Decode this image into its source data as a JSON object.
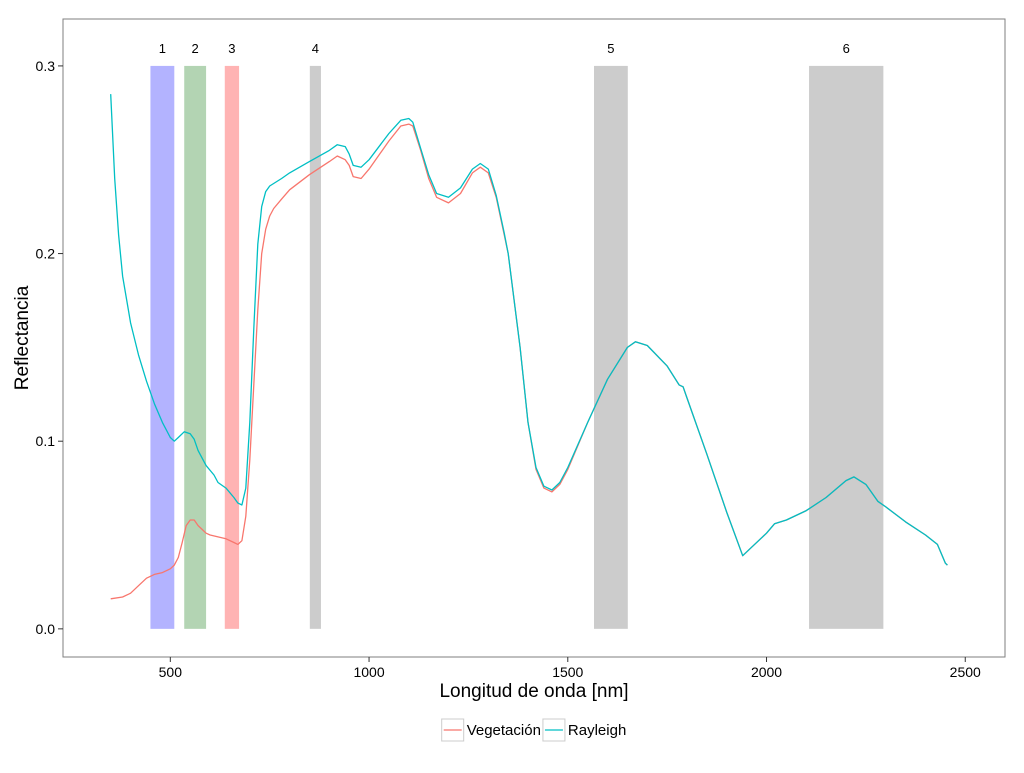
{
  "chart_data": {
    "type": "line",
    "title": "",
    "xlabel": "Longitud de onda [nm]",
    "ylabel": "Reflectancia",
    "xlim": [
      230,
      2600
    ],
    "ylim": [
      -0.015,
      0.325
    ],
    "x_ticks": [
      500,
      1000,
      1500,
      2000,
      2500
    ],
    "x_tick_labels": [
      "500",
      "1000",
      "1500",
      "2000",
      "2500"
    ],
    "y_ticks": [
      0.0,
      0.1,
      0.2,
      0.3
    ],
    "y_tick_labels": [
      "0.0",
      "0.1",
      "0.2",
      "0.3"
    ],
    "grid": false,
    "legend_position": "bottom",
    "bands": [
      {
        "label": "1",
        "x_start": 450,
        "x_end": 510,
        "y_max": 0.3,
        "color": "#b3b3ff"
      },
      {
        "label": "2",
        "x_start": 535,
        "x_end": 590,
        "y_max": 0.3,
        "color": "#b3d4b3"
      },
      {
        "label": "3",
        "x_start": 637,
        "x_end": 673,
        "y_max": 0.3,
        "color": "#ffb3b3"
      },
      {
        "label": "4",
        "x_start": 851,
        "x_end": 879,
        "y_max": 0.3,
        "color": "#cccccc"
      },
      {
        "label": "5",
        "x_start": 1566,
        "x_end": 1651,
        "y_max": 0.3,
        "color": "#cccccc"
      },
      {
        "label": "6",
        "x_start": 2107,
        "x_end": 2294,
        "y_max": 0.3,
        "color": "#cccccc"
      }
    ],
    "series": [
      {
        "name": "Vegetación",
        "color": "#F8766D",
        "points": [
          [
            350,
            0.016
          ],
          [
            380,
            0.017
          ],
          [
            400,
            0.019
          ],
          [
            420,
            0.023
          ],
          [
            440,
            0.027
          ],
          [
            460,
            0.029
          ],
          [
            480,
            0.03
          ],
          [
            500,
            0.032
          ],
          [
            510,
            0.034
          ],
          [
            520,
            0.038
          ],
          [
            530,
            0.046
          ],
          [
            540,
            0.055
          ],
          [
            550,
            0.058
          ],
          [
            560,
            0.058
          ],
          [
            570,
            0.055
          ],
          [
            580,
            0.053
          ],
          [
            590,
            0.051
          ],
          [
            600,
            0.05
          ],
          [
            620,
            0.049
          ],
          [
            640,
            0.048
          ],
          [
            660,
            0.046
          ],
          [
            670,
            0.045
          ],
          [
            680,
            0.047
          ],
          [
            690,
            0.06
          ],
          [
            700,
            0.09
          ],
          [
            710,
            0.13
          ],
          [
            720,
            0.17
          ],
          [
            730,
            0.2
          ],
          [
            740,
            0.213
          ],
          [
            750,
            0.22
          ],
          [
            760,
            0.224
          ],
          [
            780,
            0.229
          ],
          [
            800,
            0.234
          ],
          [
            850,
            0.242
          ],
          [
            900,
            0.249
          ],
          [
            920,
            0.252
          ],
          [
            940,
            0.25
          ],
          [
            950,
            0.247
          ],
          [
            960,
            0.241
          ],
          [
            980,
            0.24
          ],
          [
            1000,
            0.245
          ],
          [
            1050,
            0.26
          ],
          [
            1080,
            0.268
          ],
          [
            1100,
            0.269
          ],
          [
            1110,
            0.268
          ],
          [
            1130,
            0.255
          ],
          [
            1150,
            0.24
          ],
          [
            1170,
            0.23
          ],
          [
            1200,
            0.227
          ],
          [
            1230,
            0.232
          ],
          [
            1260,
            0.243
          ],
          [
            1280,
            0.246
          ],
          [
            1300,
            0.243
          ],
          [
            1320,
            0.23
          ],
          [
            1340,
            0.21
          ],
          [
            1350,
            0.2
          ],
          [
            1380,
            0.15
          ],
          [
            1400,
            0.11
          ],
          [
            1420,
            0.085
          ],
          [
            1440,
            0.075
          ],
          [
            1460,
            0.073
          ],
          [
            1480,
            0.077
          ],
          [
            1500,
            0.085
          ],
          [
            1550,
            0.11
          ],
          [
            1600,
            0.133
          ],
          [
            1650,
            0.15
          ],
          [
            1670,
            0.153
          ],
          [
            1700,
            0.151
          ],
          [
            1750,
            0.14
          ],
          [
            1780,
            0.13
          ],
          [
            1790,
            0.129
          ],
          [
            1800,
            0.123
          ],
          [
            1850,
            0.093
          ],
          [
            1900,
            0.062
          ],
          [
            1940,
            0.039
          ],
          [
            1960,
            0.043
          ],
          [
            2000,
            0.051
          ],
          [
            2020,
            0.056
          ],
          [
            2050,
            0.058
          ],
          [
            2100,
            0.063
          ],
          [
            2150,
            0.07
          ],
          [
            2200,
            0.079
          ],
          [
            2220,
            0.081
          ],
          [
            2250,
            0.077
          ],
          [
            2280,
            0.068
          ],
          [
            2300,
            0.065
          ],
          [
            2350,
            0.057
          ],
          [
            2400,
            0.05
          ],
          [
            2430,
            0.045
          ],
          [
            2450,
            0.035
          ],
          [
            2455,
            0.034
          ]
        ]
      },
      {
        "name": "Rayleigh",
        "color": "#00BFC4",
        "points": [
          [
            350,
            0.285
          ],
          [
            360,
            0.24
          ],
          [
            370,
            0.21
          ],
          [
            380,
            0.188
          ],
          [
            400,
            0.163
          ],
          [
            420,
            0.146
          ],
          [
            440,
            0.132
          ],
          [
            460,
            0.12
          ],
          [
            480,
            0.11
          ],
          [
            500,
            0.102
          ],
          [
            510,
            0.1
          ],
          [
            520,
            0.102
          ],
          [
            535,
            0.105
          ],
          [
            550,
            0.104
          ],
          [
            560,
            0.101
          ],
          [
            570,
            0.095
          ],
          [
            590,
            0.087
          ],
          [
            610,
            0.082
          ],
          [
            620,
            0.078
          ],
          [
            640,
            0.075
          ],
          [
            660,
            0.07
          ],
          [
            670,
            0.067
          ],
          [
            680,
            0.066
          ],
          [
            690,
            0.075
          ],
          [
            700,
            0.11
          ],
          [
            710,
            0.16
          ],
          [
            720,
            0.205
          ],
          [
            730,
            0.225
          ],
          [
            740,
            0.233
          ],
          [
            750,
            0.236
          ],
          [
            780,
            0.24
          ],
          [
            800,
            0.243
          ],
          [
            850,
            0.249
          ],
          [
            900,
            0.255
          ],
          [
            920,
            0.258
          ],
          [
            940,
            0.257
          ],
          [
            950,
            0.253
          ],
          [
            960,
            0.247
          ],
          [
            980,
            0.246
          ],
          [
            1000,
            0.25
          ],
          [
            1050,
            0.264
          ],
          [
            1080,
            0.271
          ],
          [
            1100,
            0.272
          ],
          [
            1110,
            0.27
          ],
          [
            1130,
            0.256
          ],
          [
            1150,
            0.242
          ],
          [
            1170,
            0.232
          ],
          [
            1200,
            0.23
          ],
          [
            1230,
            0.235
          ],
          [
            1260,
            0.245
          ],
          [
            1280,
            0.248
          ],
          [
            1300,
            0.245
          ],
          [
            1320,
            0.231
          ],
          [
            1340,
            0.211
          ],
          [
            1350,
            0.2
          ],
          [
            1380,
            0.15
          ],
          [
            1400,
            0.11
          ],
          [
            1420,
            0.086
          ],
          [
            1440,
            0.076
          ],
          [
            1460,
            0.074
          ],
          [
            1480,
            0.078
          ],
          [
            1500,
            0.086
          ],
          [
            1550,
            0.11
          ],
          [
            1600,
            0.133
          ],
          [
            1650,
            0.15
          ],
          [
            1670,
            0.153
          ],
          [
            1700,
            0.151
          ],
          [
            1750,
            0.14
          ],
          [
            1780,
            0.13
          ],
          [
            1790,
            0.129
          ],
          [
            1800,
            0.123
          ],
          [
            1850,
            0.093
          ],
          [
            1900,
            0.062
          ],
          [
            1940,
            0.039
          ],
          [
            1960,
            0.043
          ],
          [
            2000,
            0.051
          ],
          [
            2020,
            0.056
          ],
          [
            2050,
            0.058
          ],
          [
            2100,
            0.063
          ],
          [
            2150,
            0.07
          ],
          [
            2200,
            0.079
          ],
          [
            2220,
            0.081
          ],
          [
            2250,
            0.077
          ],
          [
            2280,
            0.068
          ],
          [
            2300,
            0.065
          ],
          [
            2350,
            0.057
          ],
          [
            2400,
            0.05
          ],
          [
            2430,
            0.045
          ],
          [
            2450,
            0.035
          ],
          [
            2455,
            0.034
          ]
        ]
      }
    ]
  }
}
